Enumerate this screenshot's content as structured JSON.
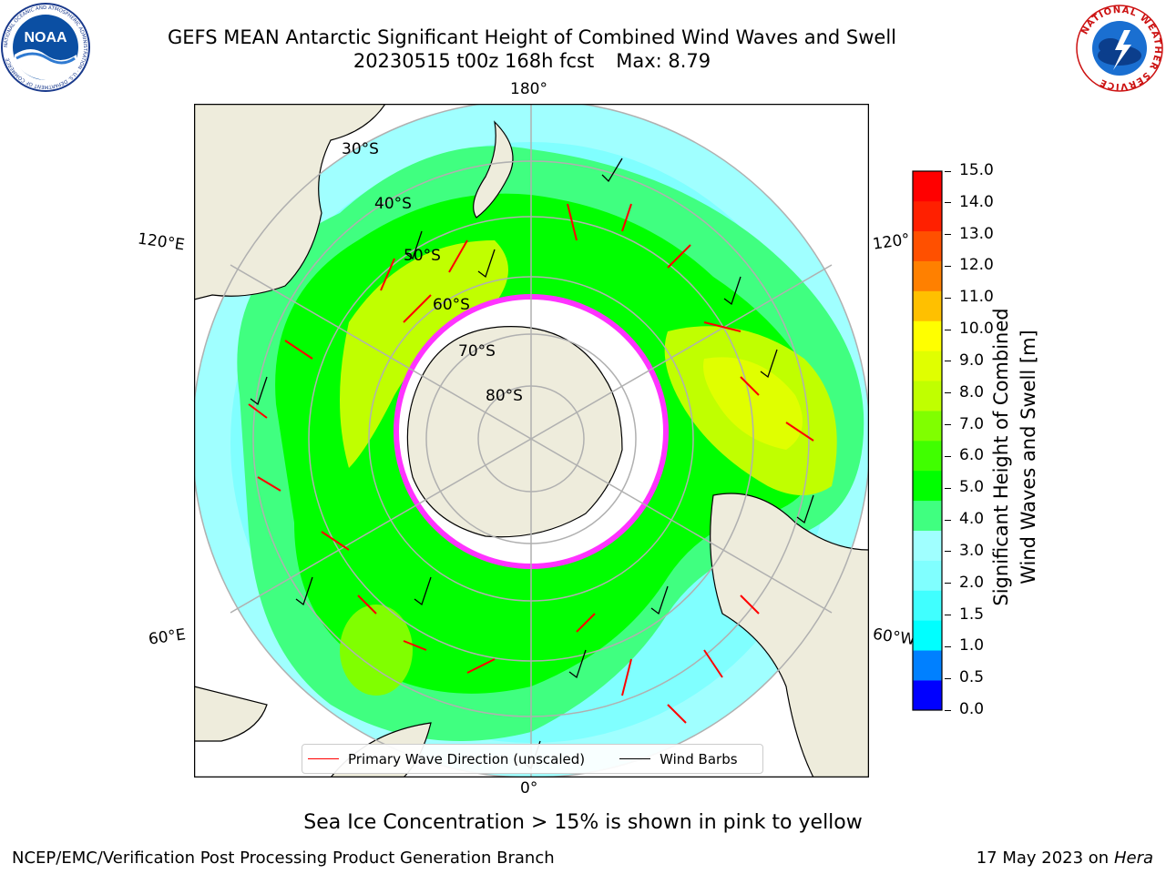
{
  "header": {
    "title_line1": "GEFS MEAN Antarctic Significant Height of Combined Wind Waves and Swell",
    "run_info": "20230515 t00z 168h fcst",
    "max_info": "Max: 8.79"
  },
  "logos": {
    "left": {
      "name": "noaa-logo",
      "text": "NOAA",
      "ring_text": "NATIONAL OCEANIC AND ATMOSPHERIC ADMINISTRATION · U.S. DEPARTMENT OF COMMERCE"
    },
    "right": {
      "name": "nws-logo",
      "ring_text": "NATIONAL WEATHER SERVICE"
    }
  },
  "map": {
    "projection": "South Polar Stereographic",
    "longitude_labels": {
      "top": "180°",
      "bottom": "0°",
      "upper_left": "120°E",
      "upper_right": "120°",
      "lower_left": "60°E",
      "lower_right": "60°W"
    },
    "latitude_labels": [
      "30°S",
      "40°S",
      "50°S",
      "60°S",
      "70°S",
      "80°S"
    ],
    "legend": [
      {
        "label": "Primary Wave Direction (unscaled)",
        "color": "#ff0000"
      },
      {
        "label": "Wind Barbs",
        "color": "#000000"
      }
    ],
    "colors": {
      "land": "#eeecdc",
      "ice": "#ff33ff",
      "graticule": "#b0b0b0"
    }
  },
  "colorbar": {
    "title_line1": "Significant Height of Combined",
    "title_line2": "Wind Waves and Swell [m]",
    "ticks": [
      "0.0",
      "0.5",
      "1.0",
      "1.5",
      "2.0",
      "3.0",
      "4.0",
      "5.0",
      "6.0",
      "7.0",
      "8.0",
      "9.0",
      "10.0",
      "11.0",
      "12.0",
      "13.0",
      "14.0",
      "15.0"
    ],
    "colors": [
      "#0000ff",
      "#0080ff",
      "#00ffff",
      "#40ffff",
      "#80ffff",
      "#a0ffff",
      "#40ff80",
      "#00ff00",
      "#40ff00",
      "#80ff00",
      "#c0ff00",
      "#e0ff00",
      "#ffff00",
      "#ffc000",
      "#ff8000",
      "#ff5000",
      "#ff2000",
      "#ff0000"
    ]
  },
  "caption": "Sea Ice Concentration > 15% is shown in pink to yellow",
  "footer": {
    "left": "NCEP/EMC/Verification Post Processing Product Generation Branch",
    "right_prefix": "17 May 2023 on",
    "right_italic": "Hera"
  }
}
